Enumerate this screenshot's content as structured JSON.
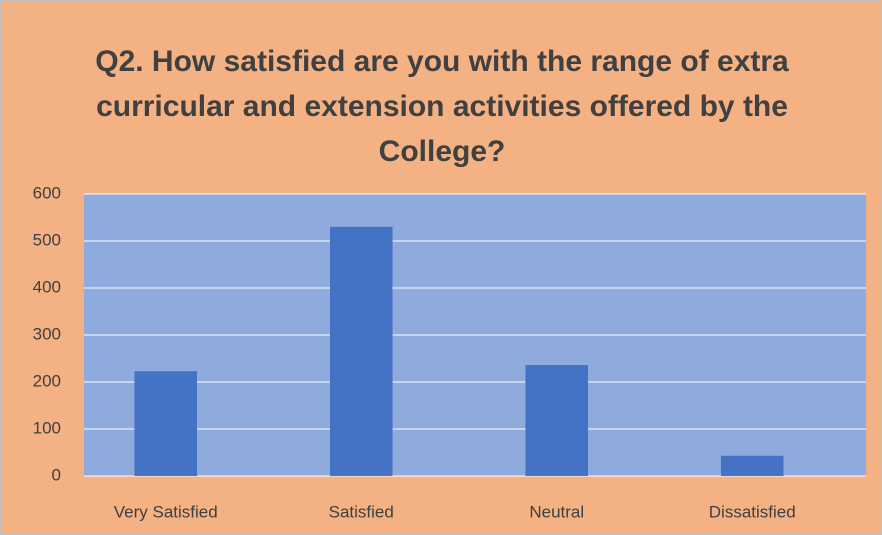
{
  "chart_data": {
    "type": "bar",
    "title": "Q2. How satisfied are you with the range of extra curricular and extension activities offered by the College?",
    "categories": [
      "Very Satisfied",
      "Satisfied",
      "Neutral",
      "Dissatisfied"
    ],
    "values": [
      223,
      530,
      236,
      43
    ],
    "color": "#4472c4",
    "ylim": [
      0,
      600
    ],
    "yticks": [
      0,
      100,
      200,
      300,
      400,
      500,
      600
    ],
    "grid": true
  }
}
